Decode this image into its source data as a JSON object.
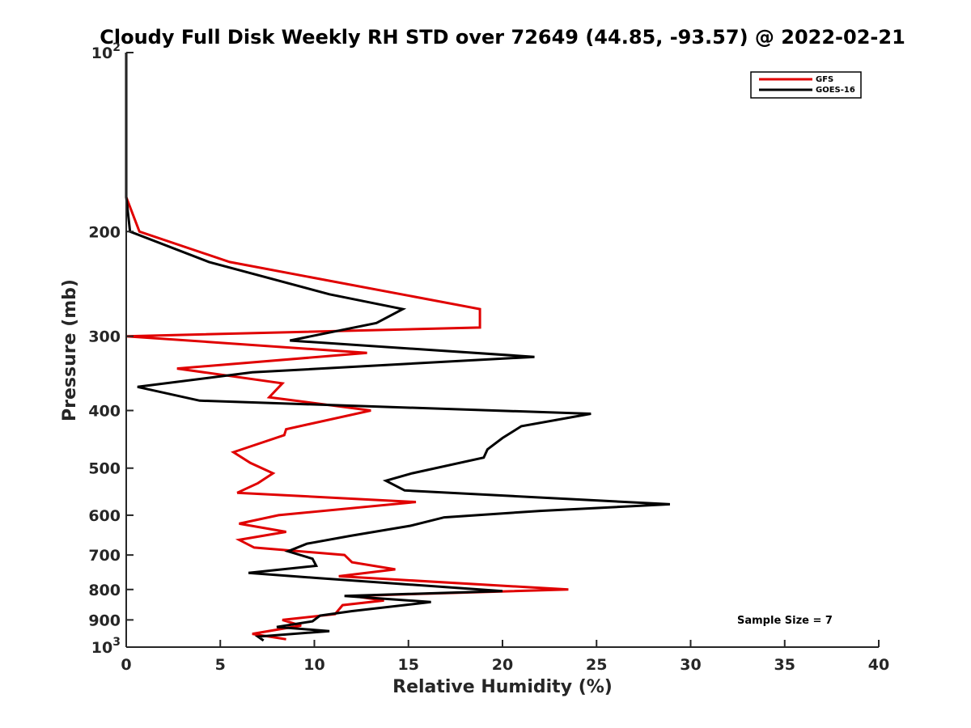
{
  "chart_data": {
    "type": "line",
    "title": "Cloudy Full Disk Weekly RH STD over 72649 (44.85, -93.57) @ 2022-02-21",
    "xlabel": "Relative Humidity (%)",
    "ylabel": "Pressure (mb)",
    "xlim": [
      0,
      40
    ],
    "ylim": [
      100,
      1000
    ],
    "y_scale": "log",
    "y_reversed": true,
    "grid": false,
    "legend_position": "top-right",
    "x_ticks": [
      "0",
      "5",
      "10",
      "15",
      "20",
      "25",
      "30",
      "35",
      "40"
    ],
    "y_ticks": [
      {
        "value": 100,
        "base": "10",
        "exp": "2"
      },
      {
        "value": 200,
        "label": "200"
      },
      {
        "value": 300,
        "label": "300"
      },
      {
        "value": 400,
        "label": "400"
      },
      {
        "value": 500,
        "label": "500"
      },
      {
        "value": 600,
        "label": "600"
      },
      {
        "value": 700,
        "label": "700"
      },
      {
        "value": 800,
        "label": "800"
      },
      {
        "value": 900,
        "label": "900"
      },
      {
        "value": 1000,
        "base": "10",
        "exp": "3"
      }
    ],
    "annotation": "Sample Size = 7",
    "series": [
      {
        "name": "GFS",
        "color": "#e00000",
        "points": [
          [
            0,
            100
          ],
          [
            0,
            150
          ],
          [
            0,
            175
          ],
          [
            0.7,
            200
          ],
          [
            5.5,
            225
          ],
          [
            18.8,
            270
          ],
          [
            18.8,
            290
          ],
          [
            0,
            300
          ],
          [
            12.8,
            320
          ],
          [
            2.7,
            340
          ],
          [
            8.3,
            360
          ],
          [
            7.6,
            380
          ],
          [
            13,
            400
          ],
          [
            8.5,
            430
          ],
          [
            8.4,
            440
          ],
          [
            5.7,
            470
          ],
          [
            6.6,
            490
          ],
          [
            7.8,
            510
          ],
          [
            7.0,
            530
          ],
          [
            5.9,
            550
          ],
          [
            15.4,
            570
          ],
          [
            8.1,
            600
          ],
          [
            6.0,
            620
          ],
          [
            8.5,
            640
          ],
          [
            6.0,
            660
          ],
          [
            6.8,
            680
          ],
          [
            11.6,
            700
          ],
          [
            12.0,
            720
          ],
          [
            14.3,
            740
          ],
          [
            11.3,
            760
          ],
          [
            23.5,
            800
          ],
          [
            12.0,
            820
          ],
          [
            13.7,
            835
          ],
          [
            11.5,
            850
          ],
          [
            11.1,
            880
          ],
          [
            8.3,
            900
          ],
          [
            9.3,
            920
          ],
          [
            6.7,
            950
          ],
          [
            8.5,
            970
          ]
        ]
      },
      {
        "name": "GOES-16",
        "color": "#000000",
        "points": [
          [
            0,
            100
          ],
          [
            0,
            150
          ],
          [
            0,
            175
          ],
          [
            0.2,
            200
          ],
          [
            4.4,
            225
          ],
          [
            10.8,
            255
          ],
          [
            14.7,
            270
          ],
          [
            13.3,
            285
          ],
          [
            8.7,
            305
          ],
          [
            21.7,
            325
          ],
          [
            6.7,
            345
          ],
          [
            0.6,
            365
          ],
          [
            3.9,
            385
          ],
          [
            24.7,
            405
          ],
          [
            21.0,
            425
          ],
          [
            20.0,
            445
          ],
          [
            19.2,
            465
          ],
          [
            19.0,
            480
          ],
          [
            15.2,
            510
          ],
          [
            13.8,
            525
          ],
          [
            14.8,
            545
          ],
          [
            28.9,
            575
          ],
          [
            22.0,
            590
          ],
          [
            16.9,
            605
          ],
          [
            15.1,
            625
          ],
          [
            11.9,
            650
          ],
          [
            9.6,
            670
          ],
          [
            8.6,
            690
          ],
          [
            9.9,
            710
          ],
          [
            10.1,
            730
          ],
          [
            6.5,
            750
          ],
          [
            10.1,
            765
          ],
          [
            20.0,
            805
          ],
          [
            11.6,
            820
          ],
          [
            16.2,
            840
          ],
          [
            12.0,
            870
          ],
          [
            10.3,
            885
          ],
          [
            9.9,
            905
          ],
          [
            8.0,
            925
          ],
          [
            10.8,
            940
          ],
          [
            7.0,
            960
          ],
          [
            7.3,
            975
          ]
        ]
      }
    ]
  }
}
